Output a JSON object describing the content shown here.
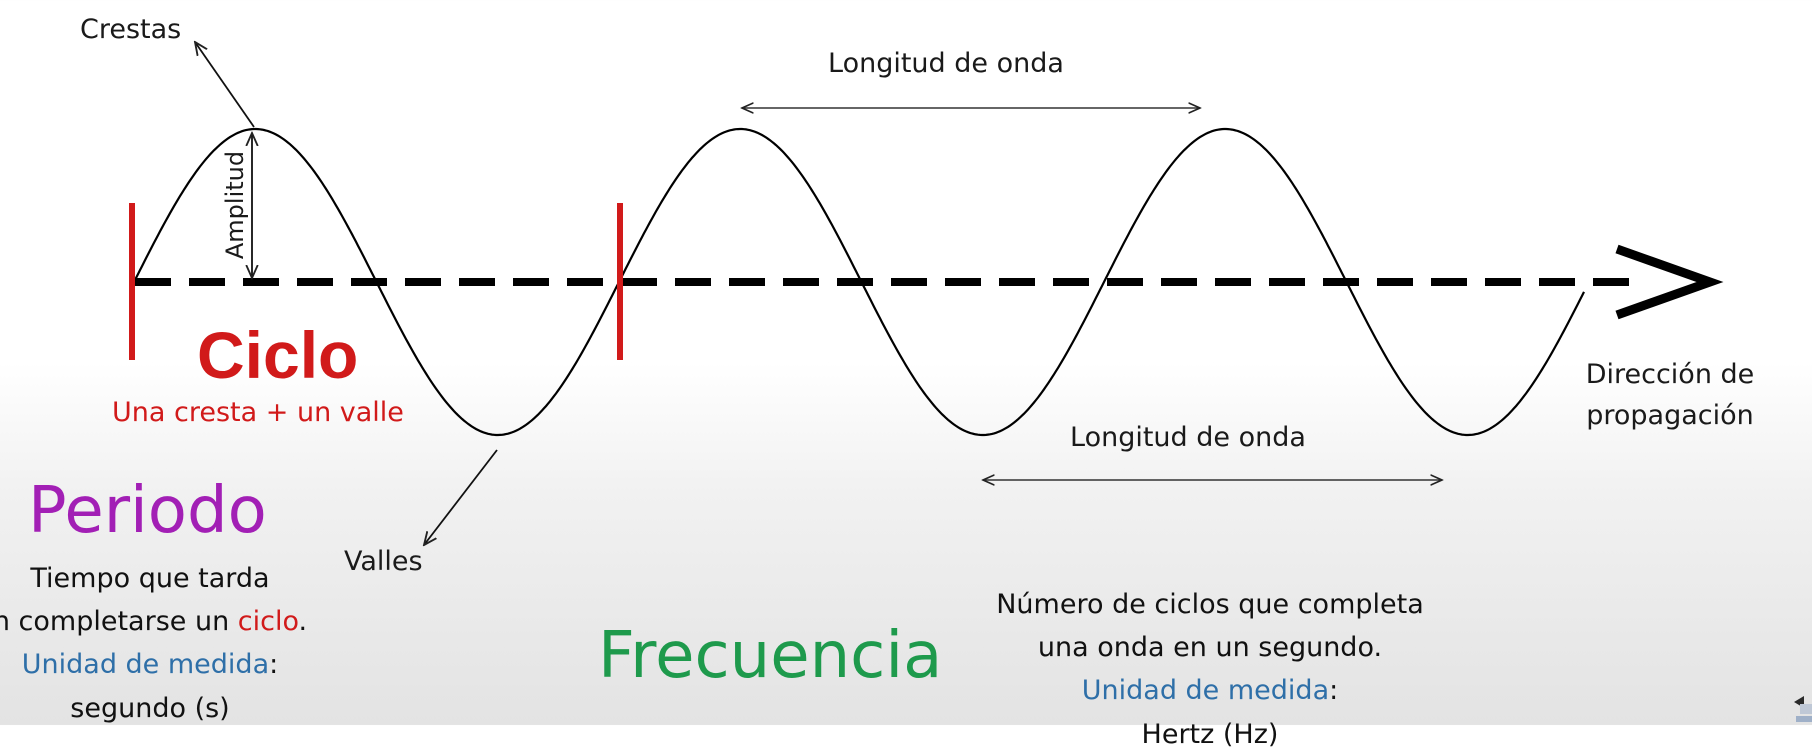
{
  "colors": {
    "wave": "#000000",
    "axis": "#000000",
    "cycle_marker": "#d11a1a",
    "ciclo": "#d11a1a",
    "periodo": "#a21fb5",
    "frecuencia": "#1e9a4c",
    "unidad": "#2e6fa8"
  },
  "labels": {
    "crestas": "Crestas",
    "amplitud": "Amplitud",
    "valles": "Valles",
    "longitud_onda_top": "Longitud de onda",
    "longitud_onda_bottom": "Longitud de onda",
    "direccion_line1": "Dirección de",
    "direccion_line2": "propagación"
  },
  "ciclo": {
    "title": "Ciclo",
    "subtitle": "Una cresta + un valle"
  },
  "periodo": {
    "title": "Periodo",
    "line1": "Tiempo que tarda",
    "line2_prefix": "n completarse un ",
    "line2_highlight": "ciclo",
    "line2_suffix": ".",
    "unidad_label": "Unidad de medida",
    "unidad_colon": ":",
    "unidad_value": "segundo (s)"
  },
  "frecuencia": {
    "title": "Frecuencia",
    "line1": "Número de ciclos que completa",
    "line2": "una onda en un segundo.",
    "unidad_label": "Unidad de medida",
    "unidad_colon": ":",
    "unidad_value_partial": "Hertz (Hz)"
  },
  "icons": {
    "direction_arrow": "arrow-right-icon",
    "corner_logo": "logo-icon"
  }
}
